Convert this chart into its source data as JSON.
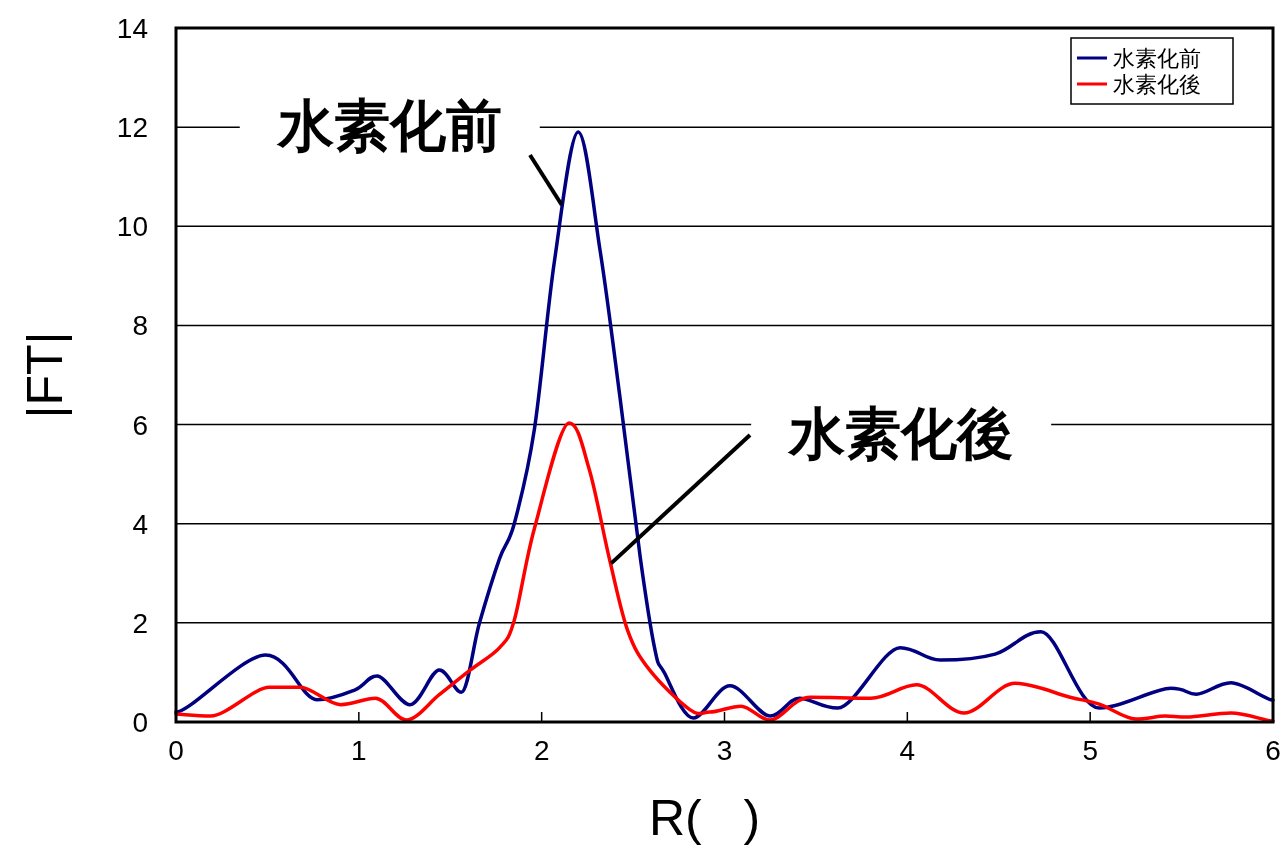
{
  "chart_data": {
    "type": "line",
    "xlabel": "R(   )",
    "ylabel": "|FT|",
    "xlim": [
      0,
      6
    ],
    "xticks": [
      0,
      1,
      2,
      3,
      4,
      5,
      6
    ],
    "ylim": [
      0,
      14
    ],
    "yticks": [
      0,
      2,
      4,
      6,
      8,
      10,
      12,
      14
    ],
    "grid": "y",
    "legend": "top right",
    "marker": "none",
    "line_style": "solid",
    "series": [
      {
        "name": "水素化前",
        "color": "#000080",
        "x": [
          0,
          0.49,
          0.77,
          0.98,
          1.1,
          1.28,
          1.44,
          1.56,
          1.66,
          1.77,
          1.85,
          1.96,
          2.07,
          2.2,
          2.32,
          2.43,
          2.54,
          2.62,
          2.67,
          2.83,
          3.03,
          3.25,
          3.41,
          3.62,
          3.96,
          4.18,
          4.48,
          4.73,
          5.05,
          5.44,
          5.58,
          5.77,
          6
        ],
        "values": [
          0.2,
          1.35,
          0.45,
          0.65,
          0.93,
          0.35,
          1.05,
          0.6,
          2.0,
          3.3,
          4.0,
          5.9,
          9.3,
          11.9,
          9.5,
          6.5,
          3.3,
          1.45,
          1.0,
          0.08,
          0.73,
          0.12,
          0.48,
          0.28,
          1.5,
          1.25,
          1.37,
          1.82,
          0.28,
          0.68,
          0.56,
          0.79,
          0.44
        ]
      },
      {
        "name": "水素化後",
        "color": "#ff0000",
        "x": [
          0,
          0.19,
          0.51,
          0.68,
          0.9,
          1.09,
          1.26,
          1.44,
          1.61,
          1.77,
          1.85,
          1.96,
          2.15,
          2.26,
          2.37,
          2.47,
          2.59,
          2.81,
          2.92,
          3.09,
          3.25,
          3.47,
          3.8,
          4.05,
          4.31,
          4.59,
          4.89,
          5.05,
          5.25,
          5.41,
          5.53,
          5.77,
          6
        ],
        "values": [
          0.16,
          0.12,
          0.7,
          0.7,
          0.35,
          0.48,
          0.04,
          0.55,
          1.05,
          1.5,
          2.05,
          3.9,
          6.03,
          5.1,
          3.3,
          1.85,
          1.05,
          0.25,
          0.2,
          0.32,
          0.04,
          0.5,
          0.48,
          0.75,
          0.18,
          0.78,
          0.5,
          0.36,
          0.06,
          0.12,
          0.1,
          0.18,
          0.02
        ]
      }
    ],
    "annotations": [
      {
        "text": "水素化前",
        "x": 2.11,
        "y": 10.43
      },
      {
        "text": "水素化後",
        "x": 2.38,
        "y": 3.2
      }
    ]
  }
}
